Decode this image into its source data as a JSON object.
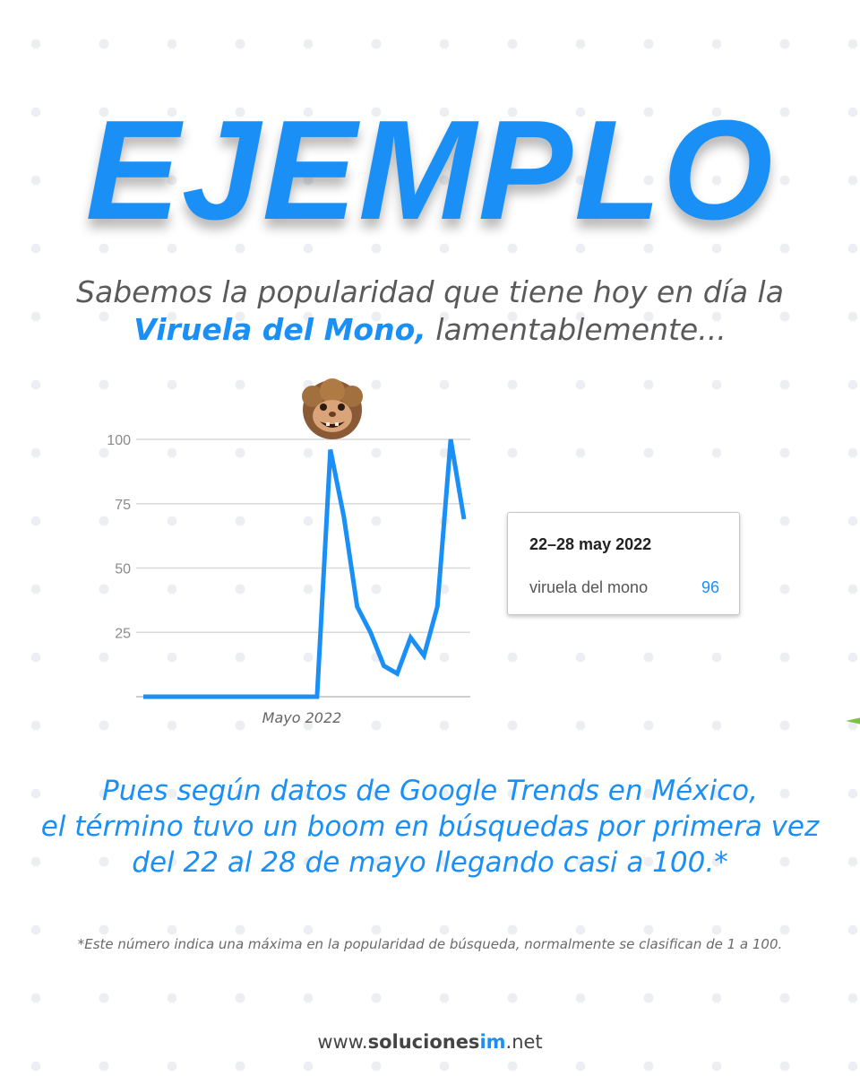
{
  "header": {
    "title": "EJEMPLO"
  },
  "intro": {
    "line1": "Sabemos la popularidad que tiene hoy en día la",
    "highlight": "Viruela del Mono,",
    "line2_rest": " lamentablemente..."
  },
  "tooltip": {
    "date": "22–28 may 2022",
    "term": "viruela del mono",
    "value": "96"
  },
  "explanation": {
    "line1": "Pues según datos de Google Trends en México,",
    "line2": "el término tuvo un boom en búsquedas por primera vez",
    "line3": "del 22 al 28 de mayo llegando casi a 100.*"
  },
  "footnote": "*Este número indica una máxima en la popularidad de búsqueda, normalmente se clasifican de 1 a 100.",
  "footer": {
    "prefix": "www.",
    "brand_main": "soluciones",
    "brand_accent": "im",
    "suffix": ".net"
  },
  "colors": {
    "accent": "#1a8ff5",
    "line": "#1a8ff5",
    "grid": "#d9d9d9",
    "green_mark": "#7cc242"
  },
  "chart_data": {
    "type": "line",
    "title": "",
    "xlabel": "Mayo 2022",
    "ylabel": "",
    "ylim": [
      0,
      100
    ],
    "yticks": [
      25,
      50,
      75,
      100
    ],
    "grid": true,
    "series": [
      {
        "values": [
          0,
          0,
          0,
          0,
          0,
          0,
          0,
          0,
          0,
          0,
          0,
          0,
          0,
          0,
          96,
          70,
          35,
          25,
          12,
          9,
          23,
          16,
          35,
          100,
          69
        ]
      }
    ]
  }
}
